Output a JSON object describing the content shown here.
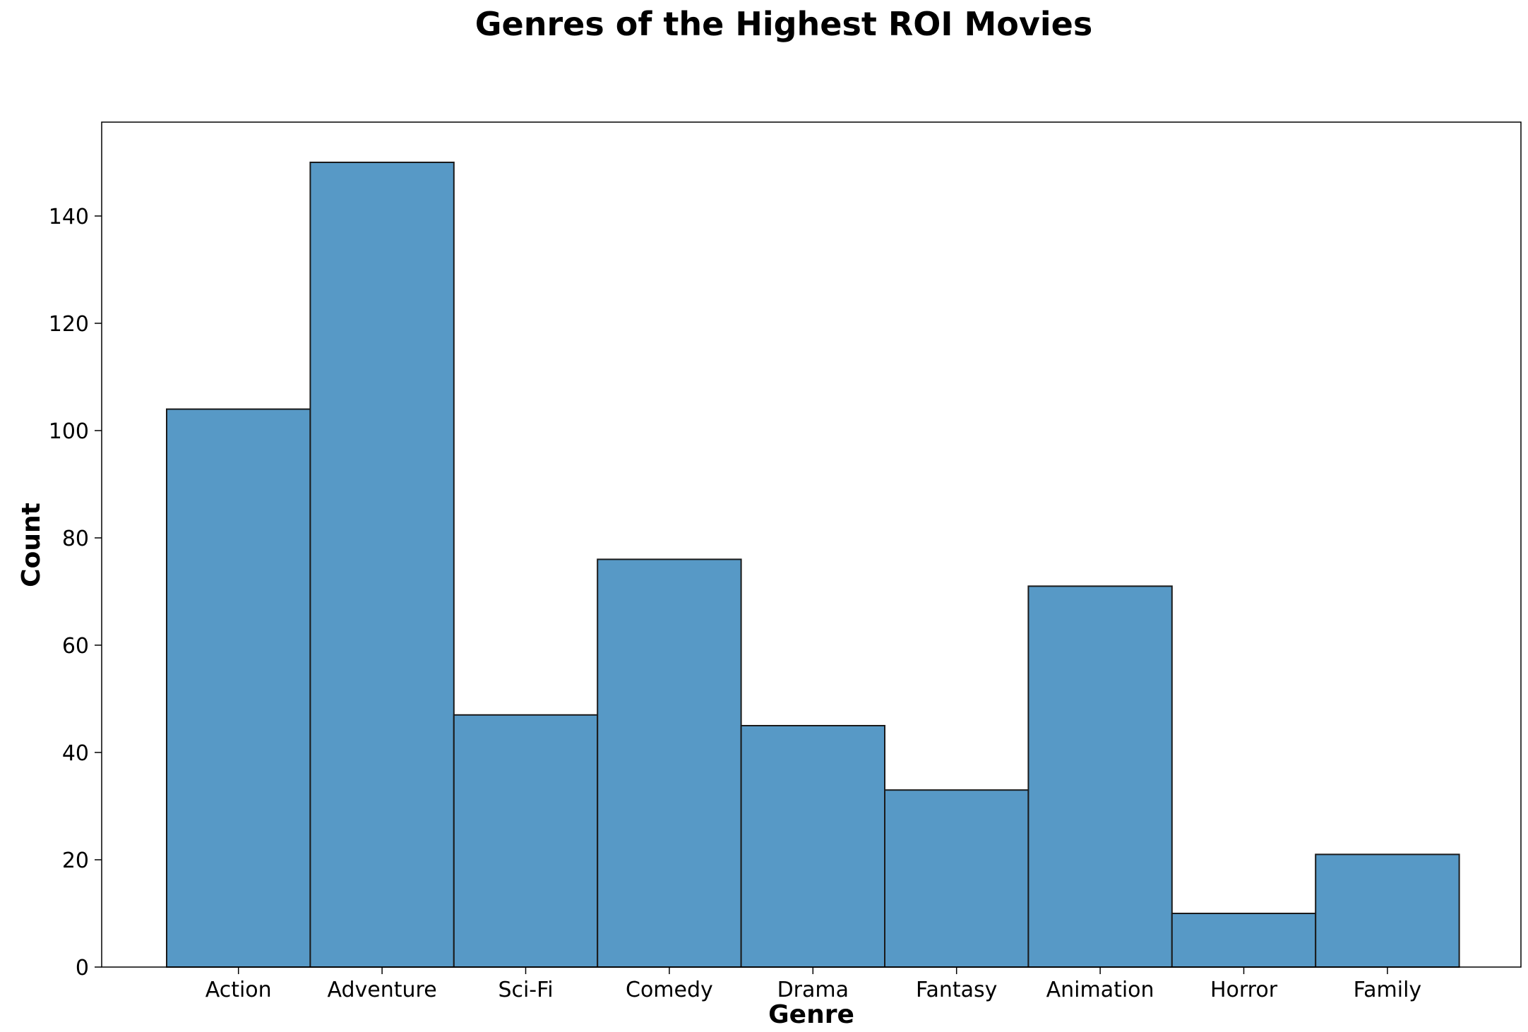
{
  "chart_data": {
    "type": "bar",
    "title": "Genres of the Highest ROI Movies",
    "xlabel": "Genre",
    "ylabel": "Count",
    "categories": [
      "Action",
      "Adventure",
      "Sci-Fi",
      "Comedy",
      "Drama",
      "Fantasy",
      "Animation",
      "Horror",
      "Family"
    ],
    "values": [
      104,
      150,
      47,
      76,
      45,
      33,
      71,
      10,
      21
    ],
    "ylim": [
      0,
      157.5
    ],
    "yticks": [
      0,
      20,
      40,
      60,
      80,
      100,
      120,
      140
    ],
    "grid": false,
    "bar_color": "#5799c6",
    "edge_color": "#1a1a1a"
  }
}
